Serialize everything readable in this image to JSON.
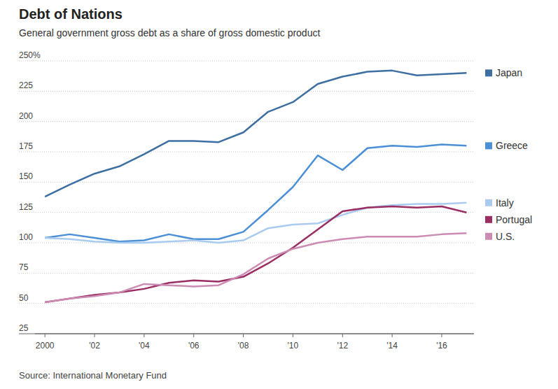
{
  "chart_data": {
    "type": "line",
    "title": "Debt of Nations",
    "subtitle": "General government gross debt as a share of gross domestic product",
    "source": "Source: International Monetary Fund",
    "x": [
      2000,
      2001,
      2002,
      2003,
      2004,
      2005,
      2006,
      2007,
      2008,
      2009,
      2010,
      2011,
      2012,
      2013,
      2014,
      2015,
      2016,
      2017
    ],
    "series": [
      {
        "name": "Japan",
        "color": "#3d6fa3",
        "values": [
          138,
          148,
          157,
          163,
          173,
          184,
          184,
          183,
          191,
          208,
          216,
          231,
          237,
          241,
          242,
          238,
          239,
          240
        ]
      },
      {
        "name": "Greece",
        "color": "#4b8fd6",
        "values": [
          104,
          107,
          104,
          101,
          102,
          107,
          103,
          103,
          109,
          127,
          146,
          172,
          160,
          178,
          180,
          179,
          181,
          180
        ]
      },
      {
        "name": "Italy",
        "color": "#a9cbef",
        "values": [
          104,
          103,
          101,
          100,
          100,
          101,
          102,
          100,
          102,
          112,
          115,
          116,
          123,
          129,
          131,
          132,
          132,
          133
        ]
      },
      {
        "name": "Portugal",
        "color": "#9a2d62",
        "values": [
          51,
          54,
          57,
          59,
          62,
          67,
          69,
          68,
          72,
          83,
          96,
          111,
          126,
          129,
          130,
          129,
          130,
          125
        ]
      },
      {
        "name": "U.S.",
        "color": "#cc8bb2",
        "values": [
          51,
          54,
          56,
          59,
          66,
          65,
          64,
          65,
          74,
          87,
          95,
          100,
          103,
          105,
          105,
          105,
          107,
          108
        ]
      }
    ],
    "xlim": [
      1999.6,
      2017.3
    ],
    "xticks": [
      {
        "value": 2000,
        "label": "2000"
      },
      {
        "value": 2002,
        "label": "'02"
      },
      {
        "value": 2004,
        "label": "'04"
      },
      {
        "value": 2006,
        "label": "'06"
      },
      {
        "value": 2008,
        "label": "'08"
      },
      {
        "value": 2010,
        "label": "'10"
      },
      {
        "value": 2012,
        "label": "'12"
      },
      {
        "value": 2014,
        "label": "'14"
      },
      {
        "value": 2016,
        "label": "'16"
      }
    ],
    "ylim": [
      25,
      250
    ],
    "yticks": [
      25,
      50,
      75,
      100,
      125,
      150,
      175,
      200,
      225,
      {
        "value": 250,
        "label": "250%"
      }
    ],
    "grid": true,
    "legend": "right"
  }
}
